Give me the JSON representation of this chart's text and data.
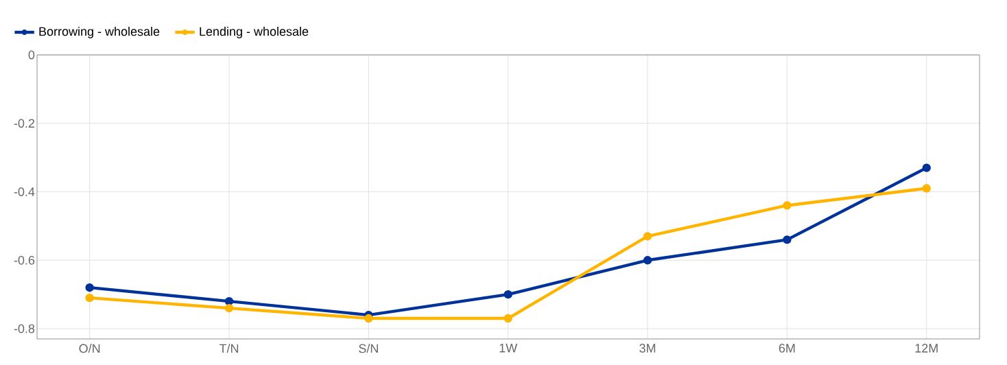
{
  "chart_data": {
    "type": "line",
    "categories": [
      "O/N",
      "T/N",
      "S/N",
      "1W",
      "3M",
      "6M",
      "12M"
    ],
    "series": [
      {
        "name": "Borrowing - wholesale",
        "color": "#003299",
        "values": [
          -0.68,
          -0.72,
          -0.76,
          -0.7,
          -0.6,
          -0.54,
          -0.33
        ]
      },
      {
        "name": "Lending - wholesale",
        "color": "#ffb400",
        "values": [
          -0.71,
          -0.74,
          -0.77,
          -0.77,
          -0.53,
          -0.44,
          -0.39
        ]
      }
    ],
    "ylim": [
      -0.83,
      0
    ],
    "yticks": [
      -0.8,
      -0.6,
      -0.4,
      -0.2,
      0
    ],
    "grid": true,
    "legend": "top left",
    "marker": "circle",
    "line_style": "solid"
  }
}
